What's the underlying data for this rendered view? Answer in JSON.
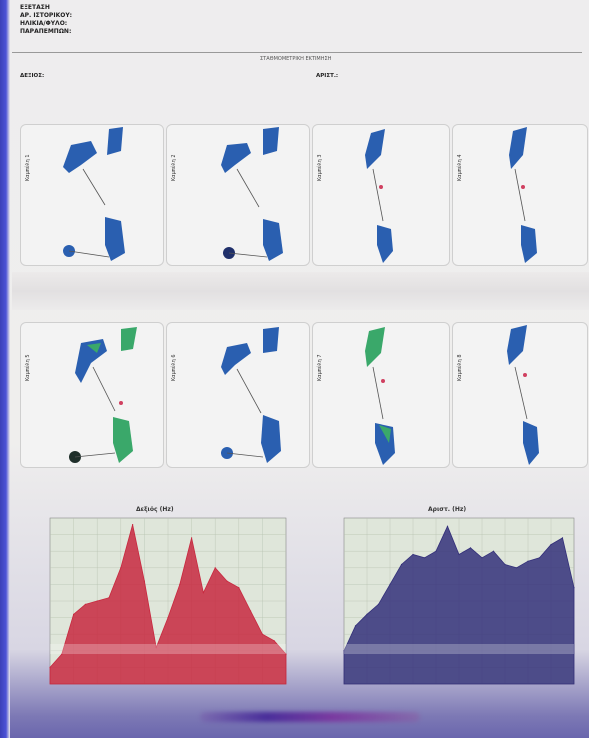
{
  "header": {
    "row1_label": "ΕΞΕΤΑΣΗ",
    "row2_label": "ΑΡ. ΙΣΤΟΡΙΚΟΥ:",
    "row3_label": "ΗΛΙΚΙΑ/ΦΥΛΟ:",
    "row4_label": "ΠΑΡΑΠΕΜΠΩΝ:",
    "section_title": "ΣΤΑΘΜΟΜΕΤΡΙΚΗ ΕΚΤΙΜΗΣΗ",
    "left_params_label": "ΔΕΞΙΟΣ:",
    "right_params_label": "ΑΡΙΣΤ.:"
  },
  "panel_labels": [
    "Καμπύλη 1",
    "Καμπύλη 2",
    "Καμπύλη 3",
    "Καμπύλη 4",
    "Καμπύλη 5",
    "Καμπύλη 6",
    "Καμπύλη 7",
    "Καμπύλη 8"
  ],
  "colors": {
    "left_fill": "#c8283f",
    "right_fill": "#34307a",
    "blue_blob": "#2a5fb0",
    "green_blob": "#3aa86a",
    "accent_frame": "#3a3fb8"
  },
  "chart_data": [
    {
      "type": "area",
      "title": "Δεξιός (Hz)",
      "ylabel": "",
      "x": [
        0,
        5,
        10,
        15,
        20,
        25,
        30,
        35,
        40,
        45,
        50,
        55,
        60,
        65,
        70,
        75,
        80,
        85,
        90,
        95,
        100
      ],
      "values": [
        10,
        18,
        42,
        48,
        50,
        52,
        70,
        96,
        62,
        22,
        40,
        60,
        88,
        55,
        70,
        62,
        58,
        44,
        30,
        26,
        18
      ],
      "ylim": [
        0,
        100
      ],
      "grid": true,
      "color": "#c8283f"
    },
    {
      "type": "area",
      "title": "Αριστ. (Hz)",
      "ylabel": "",
      "x": [
        0,
        5,
        10,
        15,
        20,
        25,
        30,
        35,
        40,
        45,
        50,
        55,
        60,
        65,
        70,
        75,
        80,
        85,
        90,
        95,
        100
      ],
      "values": [
        20,
        35,
        42,
        48,
        60,
        72,
        78,
        76,
        80,
        95,
        78,
        82,
        76,
        80,
        72,
        70,
        74,
        76,
        84,
        88,
        58
      ],
      "ylim": [
        0,
        100
      ],
      "grid": true,
      "color": "#34307a"
    }
  ]
}
